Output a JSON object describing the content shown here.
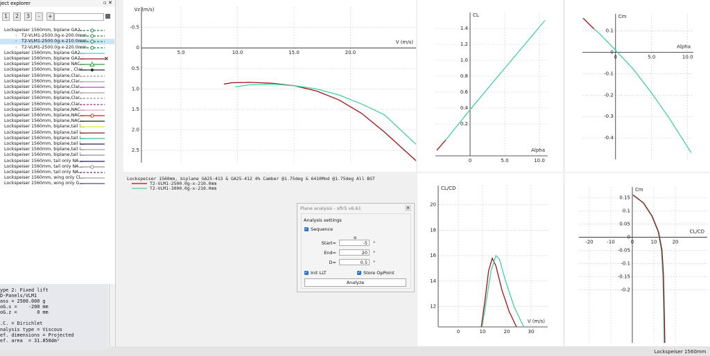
{
  "explorer": {
    "title": "ject explorer",
    "toolbar": [
      "1",
      "2",
      "3",
      "-",
      "+"
    ],
    "items": [
      {
        "label": "Lockspeiser 1560mm, biplane GA2...",
        "child": false,
        "color": "#208040",
        "marker": "circle",
        "dashed": true
      },
      {
        "label": "T2-VLM1-2500.0g-x-200.0mm",
        "child": true,
        "color": "#208040",
        "marker": "circle",
        "dashed": true
      },
      {
        "label": "T2-VLM1-2500.0g-x-210.0mm",
        "child": true,
        "color": "#208040",
        "marker": "circle",
        "dashed": true
      },
      {
        "label": "T2-VLM1-2500.0g-x-220.0mm",
        "child": true,
        "color": "#208040",
        "marker": "circle",
        "dashed": true
      },
      {
        "label": "Lockspeiser 1560mm, biplane GA2...",
        "child": false,
        "color": "#40d0d0",
        "marker": "none",
        "dashed": false
      },
      {
        "label": "Lockspeiser 1560mm, biplane GA2...",
        "child": false,
        "color": "#a01010",
        "marker": "none",
        "dashed": false
      },
      {
        "label": "Lockspeiser 1560mm, biplane NAC...",
        "child": false,
        "color": "#30a040",
        "marker": "triangle",
        "dashed": false
      },
      {
        "label": "Lockspeiser 1560mm, biplane , Clar...",
        "child": false,
        "color": "#203020",
        "marker": "dot",
        "dashed": false
      },
      {
        "label": "Lockspeiser 1560mm, biplane,Clar...",
        "child": false,
        "color": "#909090",
        "marker": "none",
        "dashed": true
      },
      {
        "label": "Lockspeiser 1560mm, biplane,Clar...",
        "child": false,
        "color": "#a0a0a0",
        "marker": "none",
        "dashed": false
      },
      {
        "label": "Lockspeiser 1560mm, biplane,Clar...",
        "child": false,
        "color": "#c040c0",
        "marker": "none",
        "dashed": false
      },
      {
        "label": "Lockspeiser 1560mm, biplane,Clar...",
        "child": false,
        "color": "#a0a0a0",
        "marker": "none",
        "dashed": false
      },
      {
        "label": "Lockspeiser 1560mm, biplane,Clar...",
        "child": false,
        "color": "#909090",
        "marker": "none",
        "dashed": true
      },
      {
        "label": "Lockspeiser 1560mm, biplane,Clar...",
        "child": false,
        "color": "#a03090",
        "marker": "none",
        "dashed": true
      },
      {
        "label": "Lockspeiser 1560mm, biplane,NAC...",
        "child": false,
        "color": "#e0a0c0",
        "marker": "none",
        "dashed": false
      },
      {
        "label": "Lockspeiser 1560mm, biplane,NAC...",
        "child": false,
        "color": "#c02020",
        "marker": "circle",
        "dashed": false
      },
      {
        "label": "Lockspeiser 1560mm, biplane,NAC...",
        "child": false,
        "color": "#202020",
        "marker": "none",
        "dashed": false
      },
      {
        "label": "Lockspeiser 1560mm, biplane,tail i...",
        "child": false,
        "color": "#e0e040",
        "marker": "none",
        "dashed": false
      },
      {
        "label": "Lockspeiser 1560mm, biplane,tail i...",
        "child": false,
        "color": "#802020",
        "marker": "none",
        "dashed": false
      },
      {
        "label": "Lockspeiser 1560mm, biplane,tail i...",
        "child": false,
        "color": "#30c0a0",
        "marker": "none",
        "dashed": false
      },
      {
        "label": "Lockspeiser 1560mm, biplane,tail i...",
        "child": false,
        "color": "#202060",
        "marker": "none",
        "dashed": false
      },
      {
        "label": "Lockspeiser 1560mm, biplane,tail i...",
        "child": false,
        "color": "#a0a0a0",
        "marker": "none",
        "dashed": false
      },
      {
        "label": "Lockspeiser 1560mm, biplane,tail i...",
        "child": false,
        "color": "#909090",
        "marker": "none",
        "dashed": false
      },
      {
        "label": "Lockspeiser 1560mm, tail only NA...",
        "child": false,
        "color": "#202050",
        "marker": "none",
        "dashed": false
      },
      {
        "label": "Lockspeiser 1560mm, tail only NA...",
        "child": false,
        "color": "#909090",
        "marker": "circle",
        "dashed": false
      },
      {
        "label": "Lockspeiser 1560mm, tail only NA...",
        "child": false,
        "color": "#603070",
        "marker": "none",
        "dashed": true
      },
      {
        "label": "Lockspeiser 1560mm, wing only Cl...",
        "child": false,
        "color": "#a0a0a0",
        "marker": "none",
        "dashed": false
      },
      {
        "label": "Lockspeiser 1560mm, wing only G...",
        "child": false,
        "color": "#604080",
        "marker": "none",
        "dashed": false
      }
    ],
    "close_mark": "×",
    "info": [
      "ype 2: Fixed lift",
      "D-Panels/VLM1",
      "ass = 2500.000 g",
      "oG.x =    -200 mm",
      "oG.z =       0 mm",
      ".C. = Dirichlet",
      "nalysis type = Viscous",
      "ef. dimensions = Projected",
      "ef. area  = 31.858dm²"
    ]
  },
  "plots": [
    {
      "y_label": "Vz (m/s)",
      "x_label": "V (m/s)",
      "xlim": [
        1.5,
        25.8
      ],
      "ylim": [
        -1.0,
        2.8
      ],
      "y_inverted": true,
      "x_axis_position": "zero",
      "y_axis_position": "left",
      "xticks": [
        {
          "value": 5,
          "label": "5.0"
        },
        {
          "value": 10,
          "label": "10.0"
        },
        {
          "value": 15,
          "label": "15.0"
        },
        {
          "value": 20,
          "label": "20.0"
        }
      ],
      "yticks": [
        -0.5,
        0,
        0.5,
        {
          "value": 1,
          "label": "1.0"
        },
        1.5,
        {
          "value": 2,
          "label": "2.0"
        },
        2.5
      ],
      "series": [
        {
          "name": "T2-VLM1-2500.0g-x-210.0mm",
          "color": "#a01010",
          "x": [
            8.8,
            9.5,
            11,
            13,
            15,
            17,
            19,
            21,
            23,
            25.8
          ],
          "y": [
            0.88,
            0.85,
            0.84,
            0.86,
            0.92,
            1.05,
            1.27,
            1.6,
            2.05,
            2.75
          ]
        },
        {
          "name": "T2-VLM1-3000.0g-x-210.0mm",
          "color": "#40d0a0",
          "x": [
            9.8,
            11,
            13,
            15,
            17,
            19,
            21,
            23,
            25.8
          ],
          "y": [
            0.95,
            0.9,
            0.88,
            0.92,
            1.0,
            1.15,
            1.37,
            1.63,
            2.35
          ]
        }
      ]
    },
    {
      "y_label": "CL",
      "x_label": "Alpha",
      "xlim": [
        -5,
        11.2
      ],
      "ylim": [
        -0.2,
        1.6
      ],
      "y_inverted": false,
      "x_axis_position": "bottom",
      "y_axis_position": "zero",
      "xticks": [
        0,
        {
          "value": 5,
          "label": "5.0"
        },
        {
          "value": 10,
          "label": "10.0"
        }
      ],
      "yticks": [
        0.2,
        0.4,
        0.6,
        0.8,
        {
          "value": 1,
          "label": "1.0"
        },
        1.2,
        1.4
      ],
      "series": [
        {
          "color": "#a01010",
          "x": [
            -4.8,
            -3.5
          ],
          "y": [
            -0.13,
            0.0
          ]
        },
        {
          "color": "#40d0a0",
          "x": [
            -3.5,
            0,
            5,
            10.8
          ],
          "y": [
            0.0,
            0.38,
            0.9,
            1.5
          ]
        }
      ]
    },
    {
      "y_label": "Cm",
      "x_label": "Alpha",
      "xlim": [
        -4.6,
        10.8
      ],
      "ylim": [
        -0.5,
        0.18
      ],
      "y_inverted": false,
      "x_axis_position": "zero",
      "y_axis_position": "zero",
      "xticks": [
        0,
        {
          "value": 5,
          "label": "5.0"
        },
        {
          "value": 10,
          "label": "10.0"
        }
      ],
      "yticks": [
        0.1,
        0,
        -0.1,
        -0.2,
        -0.3,
        -0.4
      ],
      "series": [
        {
          "color": "#a01010",
          "x": [
            -4.5,
            -3.0
          ],
          "y": [
            0.16,
            0.11
          ]
        },
        {
          "color": "#40d0a0",
          "x": [
            -3.0,
            -2,
            0,
            2.5,
            5,
            7.5,
            10.5
          ],
          "y": [
            0.11,
            0.08,
            0.01,
            -0.08,
            -0.19,
            -0.31,
            -0.47
          ]
        }
      ]
    },
    {
      "y_label": "CL/CD",
      "x_label": "V (m/s)",
      "xlim": [
        -8.3,
        36.9
      ],
      "ylim": [
        10.4,
        21.5
      ],
      "y_inverted": false,
      "x_axis_position": "bottom",
      "y_axis_position": "left",
      "xticks": [
        0,
        10,
        20,
        30
      ],
      "yticks": [
        20,
        18,
        16,
        14,
        12
      ],
      "series": [
        {
          "color": "#a01010",
          "x": [
            9.5,
            11,
            12.5,
            14,
            15.5,
            18,
            21,
            24
          ],
          "y": [
            10.4,
            12.5,
            14.8,
            15.8,
            15.2,
            13.3,
            11.6,
            10.4
          ]
        },
        {
          "color": "#40d0a0",
          "x": [
            9.8,
            11.5,
            13.5,
            15.5,
            17,
            19.5,
            23,
            27
          ],
          "y": [
            10.4,
            12.4,
            14.8,
            16.0,
            15.7,
            14.0,
            12.0,
            10.4
          ]
        }
      ]
    },
    {
      "y_label": "Cm",
      "x_label": "CL/CD",
      "xlim": [
        -24.8,
        34.8
      ],
      "ylim": [
        -0.4,
        0.19
      ],
      "y_inverted": false,
      "x_axis_position": "zero",
      "y_axis_position": "zero",
      "xticks": [
        -20,
        -10,
        0,
        10,
        20
      ],
      "yticks": [
        0.15,
        0.1,
        0.05,
        0,
        -0.05,
        -0.1,
        -0.15,
        -0.2
      ],
      "series": [
        {
          "color": "#40d0a0",
          "x": [
            0,
            5,
            9,
            12,
            13.5,
            14.2,
            14.6,
            14.8
          ],
          "y": [
            0.16,
            0.13,
            0.08,
            0.02,
            -0.05,
            -0.15,
            -0.3,
            -0.4
          ]
        },
        {
          "color": "#a01010",
          "x": [
            0.3,
            5.2,
            9.2,
            12.2,
            13.8,
            14.5,
            14.9,
            15.1
          ],
          "y": [
            0.16,
            0.13,
            0.08,
            0.02,
            -0.05,
            -0.15,
            -0.3,
            -0.4
          ]
        }
      ]
    }
  ],
  "polar_title": "Lockspeiser 1560mm, biplane GA25-413 & GA25-412 4% Camber @1.75deg & 6410Mod @1.75deg All BST",
  "dialog": {
    "title": "Plane analysis - xflr5 v6.61",
    "group": "Analysis settings",
    "sequence": "Sequence",
    "alpha_symbol": "α",
    "rows": [
      {
        "label": "Start=",
        "value": "-5",
        "unit": "°"
      },
      {
        "label": "End=",
        "value": "20",
        "unit": "°"
      },
      {
        "label": "D=",
        "value": "0.5",
        "unit": "°"
      }
    ],
    "init_llt": "Init LLT",
    "store_oppoint": "Store OpPoint",
    "analyze": "Analyze"
  },
  "status": "Lockspeiser 1560mm"
}
